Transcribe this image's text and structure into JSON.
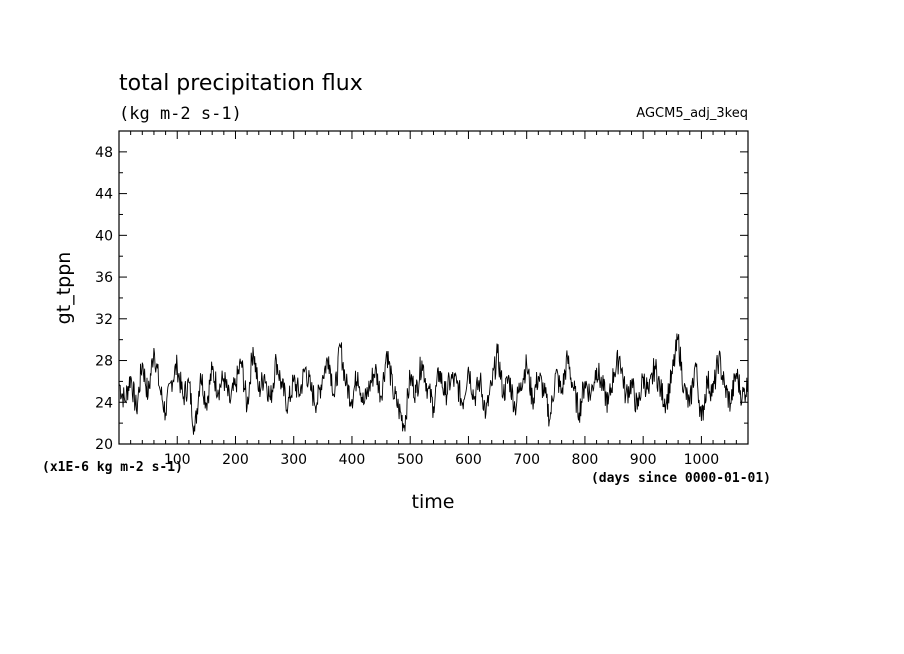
{
  "chart_data": {
    "type": "line",
    "title": "total precipitation flux",
    "subtitle": "(kg m-2 s-1)",
    "run_label": "AGCM5_adj_3keq",
    "xlabel": "time",
    "ylabel": "gt_tppn",
    "x_units": "(days since 0000-01-01)",
    "y_units": "(x1E-6 kg m-2 s-1)",
    "xlim": [
      0,
      1080
    ],
    "ylim": [
      20,
      50
    ],
    "x_ticks": [
      100,
      200,
      300,
      400,
      500,
      600,
      700,
      800,
      900,
      1000
    ],
    "x_tick_labels": [
      "100",
      "200",
      "300",
      "400",
      "500",
      "600",
      "700",
      "800",
      "900",
      "1000"
    ],
    "y_ticks": [
      20,
      24,
      28,
      32,
      36,
      40,
      44,
      48
    ],
    "y_tick_labels": [
      "20",
      "24",
      "28",
      "32",
      "36",
      "40",
      "44",
      "48"
    ],
    "grid": false,
    "series": [
      {
        "x": [
          0,
          10,
          20,
          30,
          40,
          50,
          60,
          70,
          80,
          90,
          100,
          110,
          120,
          130,
          140,
          150,
          160,
          170,
          180,
          190,
          200,
          210,
          220,
          230,
          240,
          250,
          260,
          270,
          280,
          290,
          300,
          310,
          320,
          330,
          340,
          350,
          360,
          370,
          380,
          390,
          400,
          410,
          420,
          430,
          440,
          450,
          460,
          470,
          480,
          490,
          500,
          510,
          520,
          530,
          540,
          550,
          560,
          570,
          580,
          590,
          600,
          610,
          620,
          630,
          640,
          650,
          660,
          670,
          680,
          690,
          700,
          710,
          720,
          730,
          740,
          750,
          760,
          770,
          780,
          790,
          800,
          810,
          820,
          830,
          840,
          850,
          860,
          870,
          880,
          890,
          900,
          910,
          920,
          930,
          940,
          950,
          960,
          970,
          980,
          990,
          1000,
          1010,
          1020,
          1030,
          1040,
          1050,
          1060,
          1070,
          1080
        ],
        "values": [
          25.8,
          24.1,
          26.5,
          23.2,
          27.8,
          24.6,
          29.2,
          25.3,
          23.0,
          26.1,
          27.5,
          24.4,
          25.9,
          21.2,
          26.8,
          23.9,
          27.1,
          25.2,
          26.3,
          24.0,
          25.6,
          27.9,
          23.5,
          29.3,
          25.0,
          26.7,
          24.2,
          28.1,
          25.4,
          23.7,
          26.0,
          24.8,
          27.3,
          25.1,
          23.9,
          26.6,
          28.4,
          24.5,
          29.4,
          25.7,
          24.3,
          26.9,
          23.8,
          25.5,
          27.2,
          24.6,
          28.9,
          25.2,
          23.4,
          21.8,
          26.4,
          24.9,
          28.0,
          25.3,
          23.6,
          27.0,
          24.7,
          26.2,
          25.8,
          23.9,
          27.4,
          24.4,
          26.1,
          22.9,
          25.6,
          28.7,
          24.8,
          26.3,
          23.5,
          25.9,
          27.6,
          24.2,
          26.5,
          25.0,
          22.4,
          26.8,
          24.9,
          28.2,
          25.4,
          23.0,
          26.0,
          24.7,
          27.3,
          25.5,
          23.8,
          26.9,
          28.4,
          24.6,
          25.9,
          23.3,
          26.4,
          24.8,
          27.5,
          25.1,
          24.0,
          26.7,
          30.1,
          25.3,
          23.6,
          27.8,
          22.2,
          26.1,
          24.9,
          28.3,
          25.4,
          23.9,
          26.8,
          24.5,
          25.7
        ]
      }
    ]
  }
}
